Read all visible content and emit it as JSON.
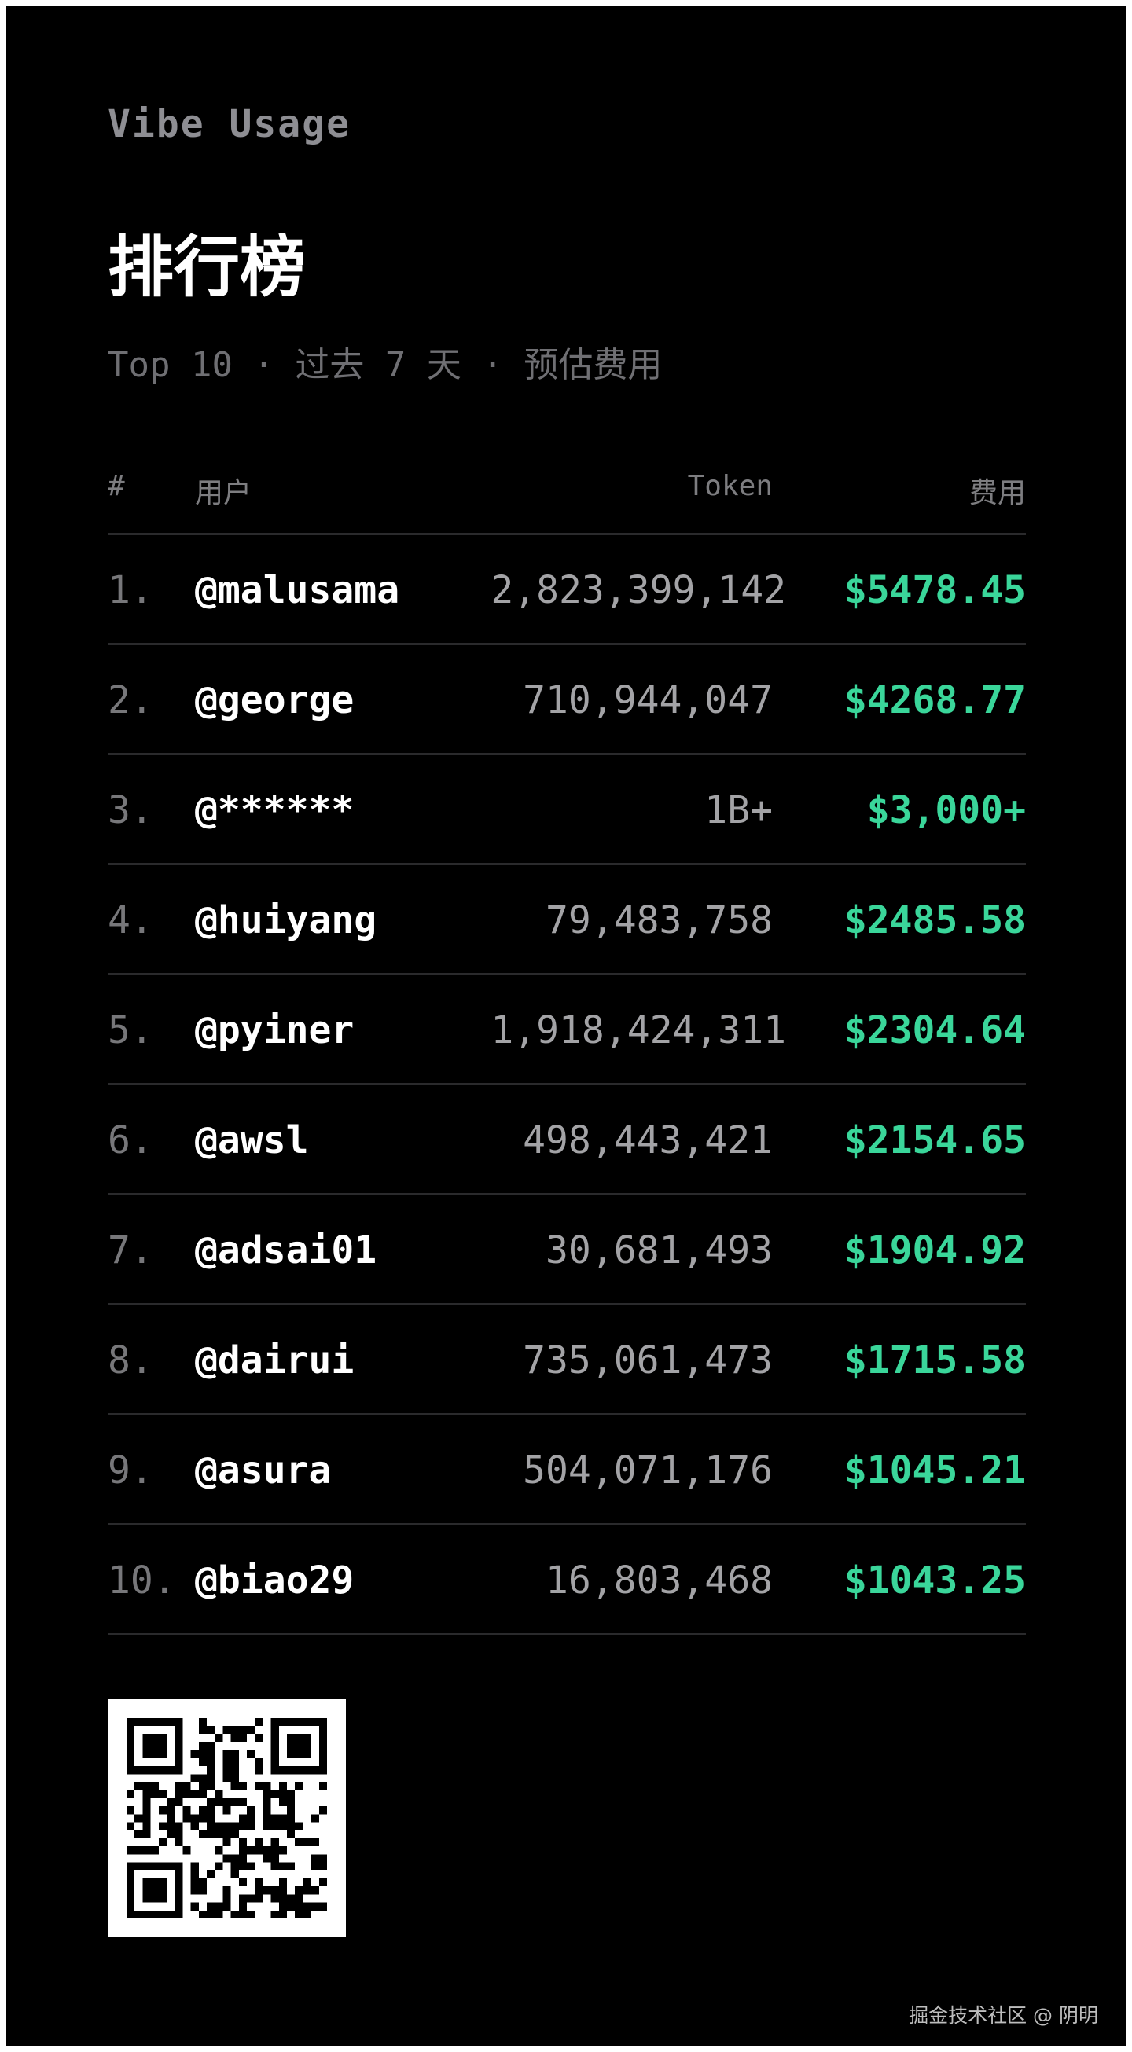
{
  "brand": "Vibe Usage",
  "title": "排行榜",
  "subtitle": "Top 10 · 过去 7 天 · 预估费用",
  "table": {
    "headers": {
      "rank": "#",
      "user": "用户",
      "token": "Token",
      "fee": "费用"
    },
    "rows": [
      {
        "rank": "1.",
        "user": "@malusama",
        "token": "2,823,399,142",
        "fee": "$5478.45"
      },
      {
        "rank": "2.",
        "user": "@george",
        "token": "710,944,047",
        "fee": "$4268.77"
      },
      {
        "rank": "3.",
        "user": "@******",
        "token": "1B+",
        "fee": "$3,000+"
      },
      {
        "rank": "4.",
        "user": "@huiyang",
        "token": "79,483,758",
        "fee": "$2485.58"
      },
      {
        "rank": "5.",
        "user": "@pyiner",
        "token": "1,918,424,311",
        "fee": "$2304.64"
      },
      {
        "rank": "6.",
        "user": "@awsl",
        "token": "498,443,421",
        "fee": "$2154.65"
      },
      {
        "rank": "7.",
        "user": "@adsai01",
        "token": "30,681,493",
        "fee": "$1904.92"
      },
      {
        "rank": "8.",
        "user": "@dairui",
        "token": "735,061,473",
        "fee": "$1715.58"
      },
      {
        "rank": "9.",
        "user": "@asura",
        "token": "504,071,176",
        "fee": "$1045.21"
      },
      {
        "rank": "10.",
        "user": "@biao29",
        "token": "16,803,468",
        "fee": "$1043.25"
      }
    ]
  },
  "qr_icon": "qr-code",
  "footer": "掘金技术社区 @ 阴明",
  "colors": {
    "background": "#000000",
    "fee": "#3ad69a",
    "muted": "#8e8e93"
  }
}
